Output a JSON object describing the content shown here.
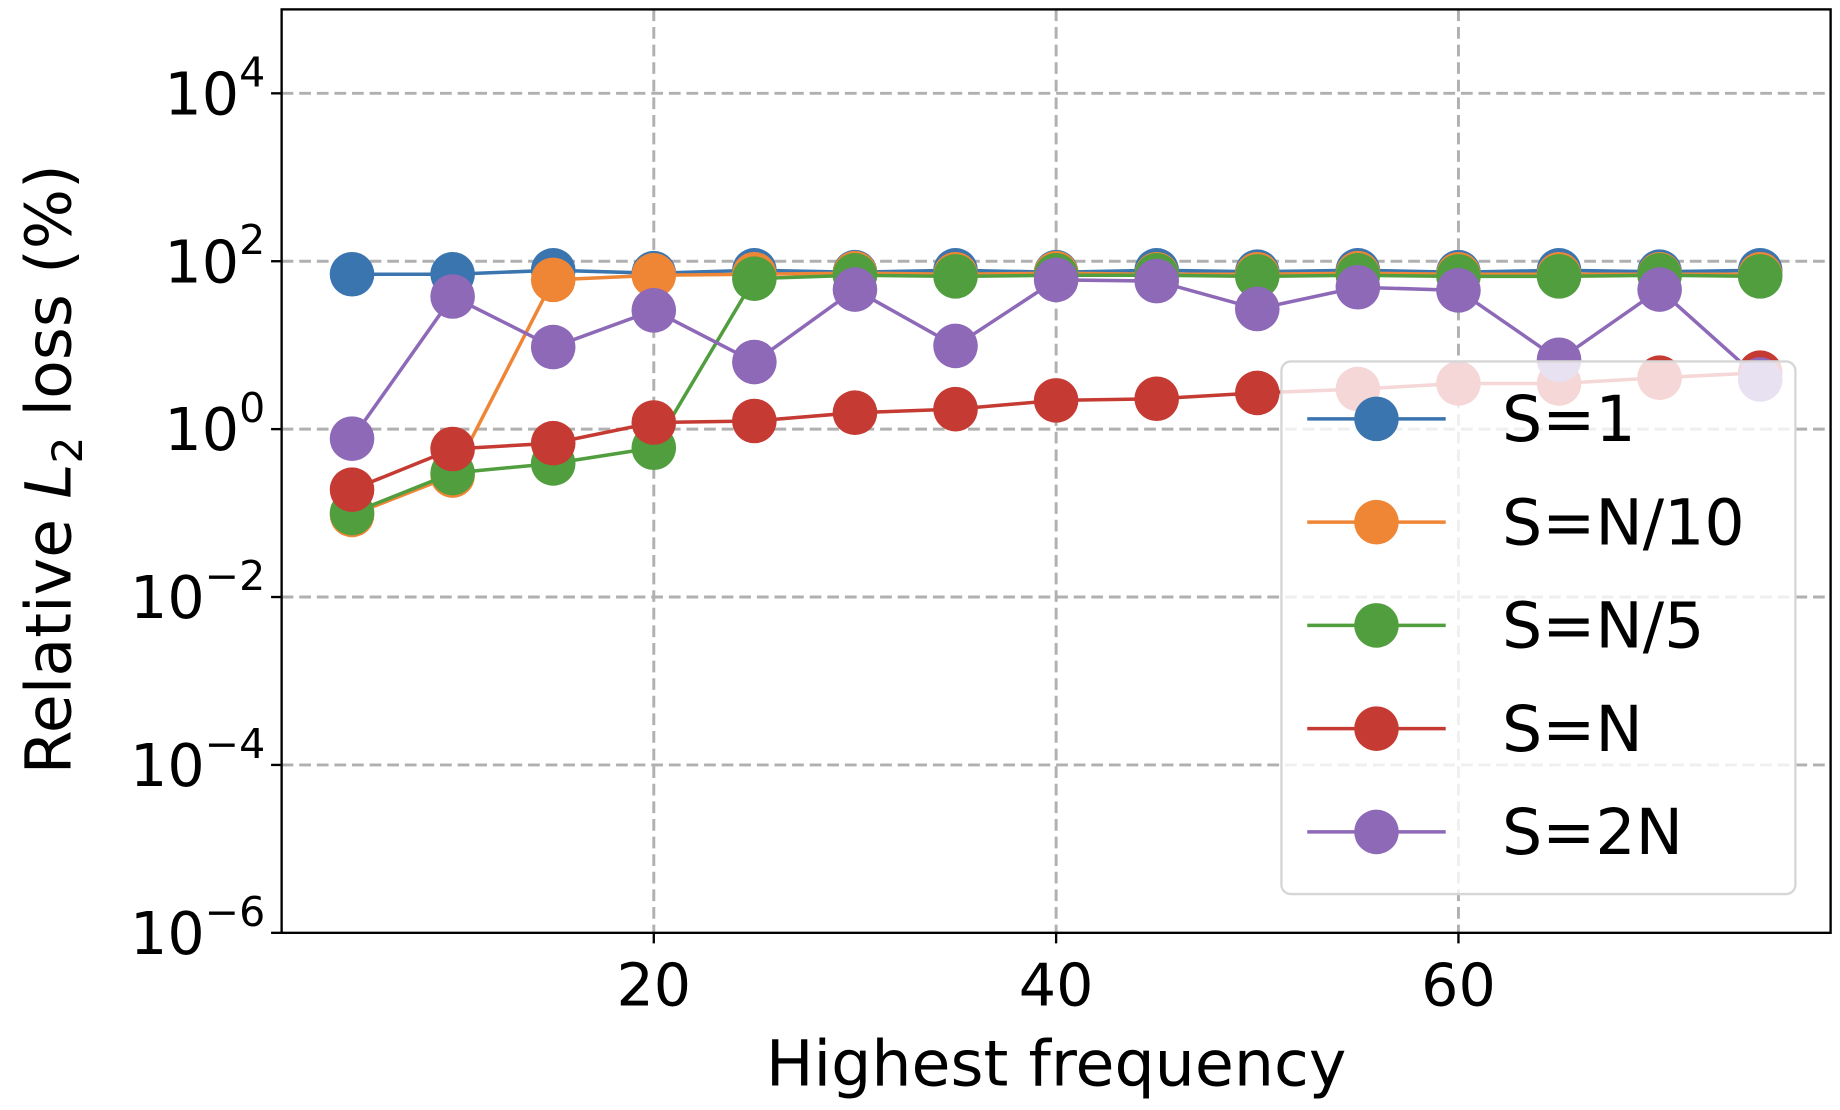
{
  "chart_data": {
    "type": "line",
    "title": "",
    "xlabel": "Highest frequency",
    "ylabel_prefix": "Relative ",
    "ylabel_var": "L",
    "ylabel_sub": "2",
    "ylabel_suffix": " loss (%)",
    "yscale": "log",
    "xlim": [
      1.5,
      78.5
    ],
    "ylim": [
      1e-06,
      100000.0
    ],
    "grid": true,
    "legend_position": "lower-right",
    "xticks": [
      20,
      40,
      60
    ],
    "yticks": [
      {
        "value": 1e-06,
        "base": "10",
        "exp": "−6"
      },
      {
        "value": 0.0001,
        "base": "10",
        "exp": "−4"
      },
      {
        "value": 0.01,
        "base": "10",
        "exp": "−2"
      },
      {
        "value": 1,
        "base": "10",
        "exp": "0"
      },
      {
        "value": 100.0,
        "base": "10",
        "exp": "2"
      },
      {
        "value": 10000.0,
        "base": "10",
        "exp": "4"
      }
    ],
    "x": [
      5,
      10,
      15,
      20,
      25,
      30,
      35,
      40,
      45,
      50,
      55,
      60,
      65,
      70,
      75
    ],
    "series": [
      {
        "name": "S=1",
        "color": "#3b75af",
        "values": [
          70,
          70,
          78,
          72,
          78,
          74,
          78,
          74,
          78,
          75,
          78,
          74,
          78,
          75,
          78
        ]
      },
      {
        "name": "S=N/10",
        "color": "#ef8636",
        "values": [
          0.095,
          0.28,
          60,
          68,
          70,
          72,
          70,
          72,
          70,
          70,
          72,
          70,
          70,
          70,
          70
        ]
      },
      {
        "name": "S=N/5",
        "color": "#519e3e",
        "values": [
          0.1,
          0.3,
          0.39,
          0.6,
          62,
          68,
          66,
          68,
          68,
          66,
          68,
          66,
          66,
          68,
          66
        ]
      },
      {
        "name": "S=N",
        "color": "#c53a32",
        "values": [
          0.19,
          0.58,
          0.68,
          1.2,
          1.25,
          1.57,
          1.73,
          2.2,
          2.3,
          2.7,
          3.0,
          3.5,
          3.5,
          4.1,
          4.7
        ]
      },
      {
        "name": "S=2N",
        "color": "#8d69b8",
        "values": [
          0.77,
          38,
          9.5,
          26,
          6.3,
          46,
          9.8,
          60,
          58,
          27,
          49,
          45,
          6.7,
          46,
          3.9
        ]
      }
    ]
  }
}
